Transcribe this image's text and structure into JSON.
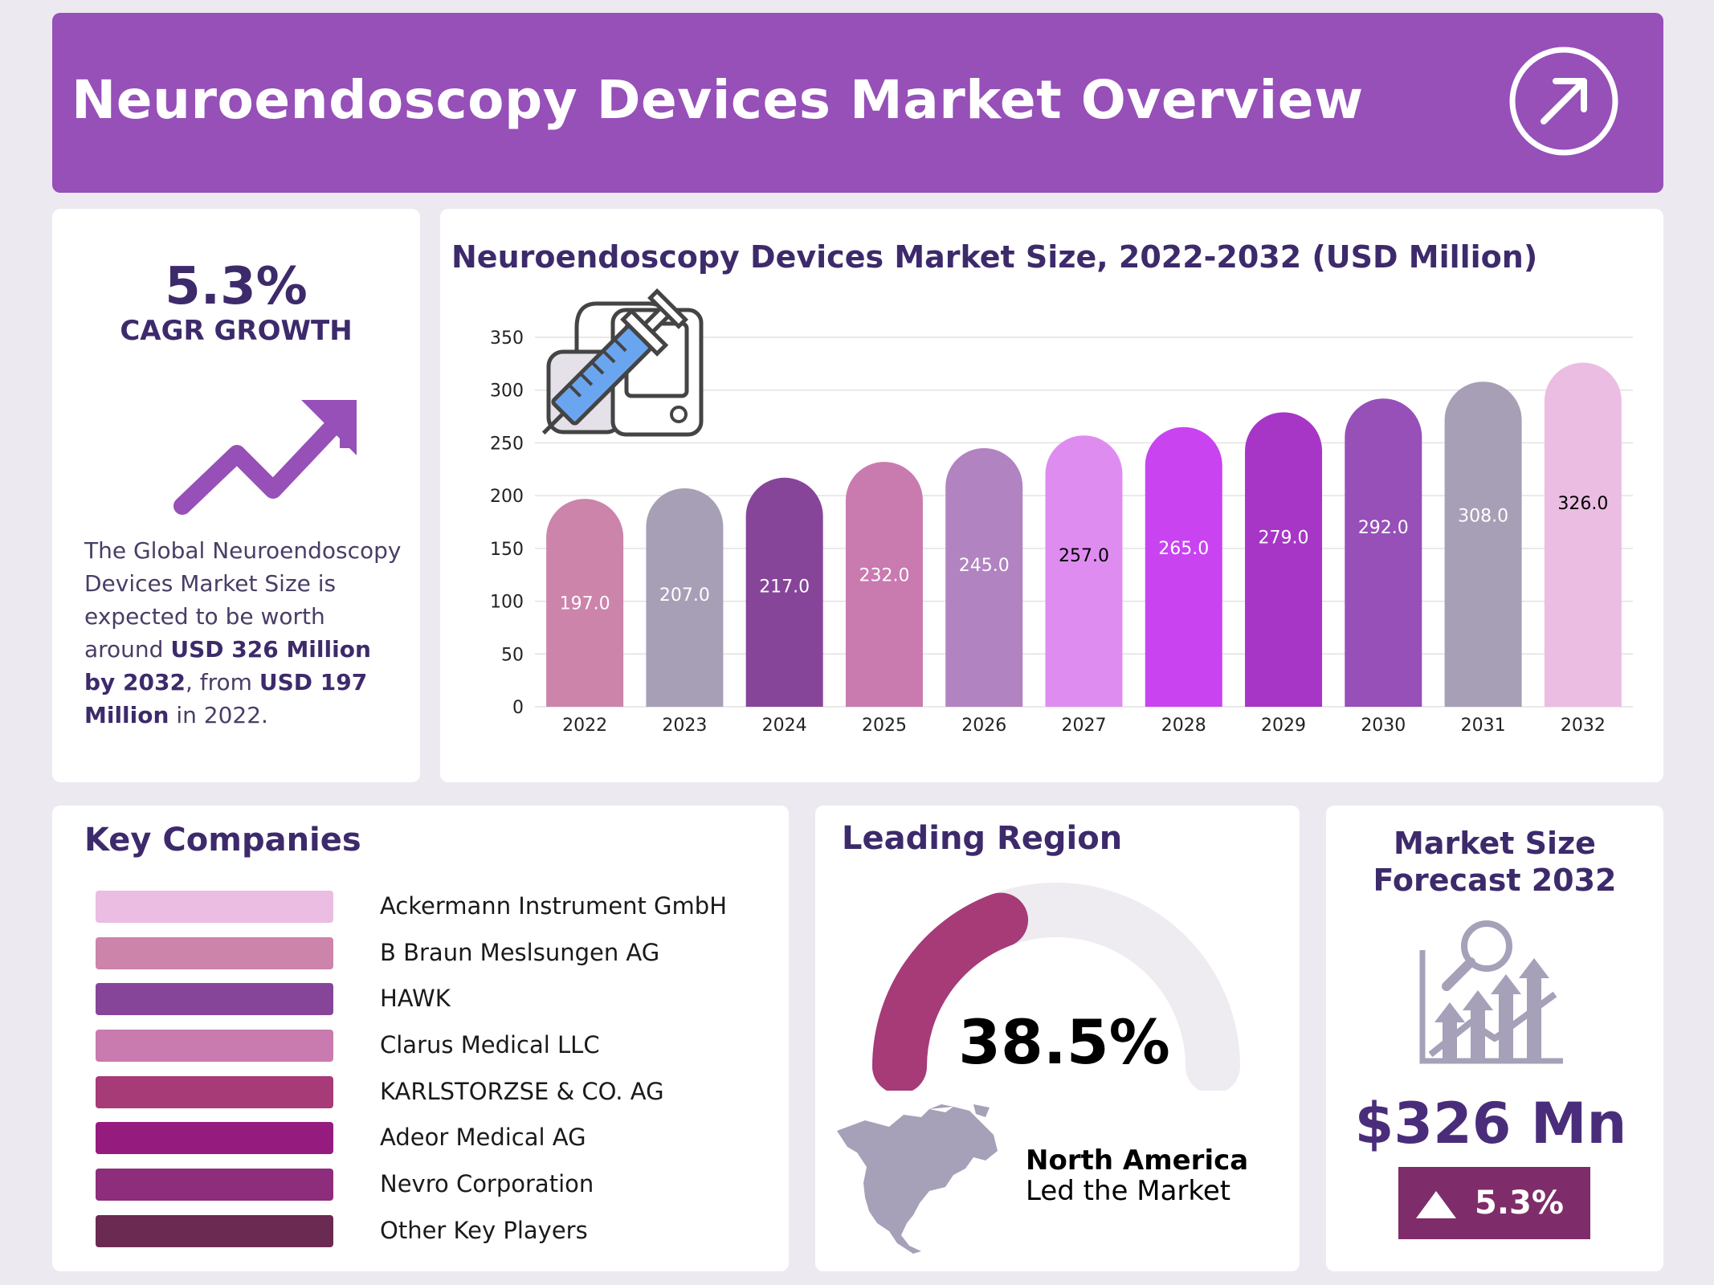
{
  "header": {
    "title": "Neuroendoscopy Devices Market Overview",
    "icon": "arrow-up-right-circle-icon",
    "background": "#9650b8"
  },
  "cagr": {
    "value": "5.3%",
    "label": "CAGR GROWTH",
    "icon": "trend-up-arrow-icon",
    "description": {
      "t1": "The Global Neuroendoscopy Devices Market Size is expected to be worth around ",
      "b1": "USD 326 Million by 2032",
      "t2": ", from ",
      "b2": "USD 197 Million",
      "t3": " in 2022."
    }
  },
  "chart_data": {
    "type": "bar",
    "title": "Neuroendoscopy Devices Market Size, 2022-2032 (USD Million)",
    "xlabel": "",
    "ylabel": "",
    "categories": [
      "2022",
      "2023",
      "2024",
      "2025",
      "2026",
      "2027",
      "2028",
      "2029",
      "2030",
      "2031",
      "2032"
    ],
    "values": [
      197.0,
      207.0,
      217.0,
      232.0,
      245.0,
      257.0,
      265.0,
      279.0,
      292.0,
      308.0,
      326.0
    ],
    "value_labels": [
      "197.0",
      "207.0",
      "217.0",
      "232.0",
      "245.0",
      "257.0",
      "265.0",
      "279.0",
      "292.0",
      "308.0",
      "326.0"
    ],
    "colors": [
      "#cc84ab",
      "#a79fb6",
      "#864599",
      "#c97aaf",
      "#b183c1",
      "#df8cf1",
      "#c943f1",
      "#a736c7",
      "#9650b8",
      "#a79fb6",
      "#ebbde2"
    ],
    "label_colors": [
      "#ffffff",
      "#ffffff",
      "#ffffff",
      "#ffffff",
      "#ffffff",
      "#000000",
      "#ffffff",
      "#ffffff",
      "#ffffff",
      "#ffffff",
      "#000000"
    ],
    "ylim": [
      0,
      350
    ],
    "yticks": [
      "0",
      "50",
      "100",
      "150",
      "200",
      "250",
      "300",
      "350"
    ],
    "grid": true,
    "legend": "none",
    "illustration": "syringe-device-icon"
  },
  "companies": {
    "title": "Key Companies",
    "items": [
      {
        "name": "Ackermann Instrument GmbH",
        "color": "#ebbde2"
      },
      {
        "name": "B Braun Meslsungen AG",
        "color": "#cc84ab"
      },
      {
        "name": "HAWK",
        "color": "#864599"
      },
      {
        "name": "Clarus Medical LLC",
        "color": "#c97aaf"
      },
      {
        "name": "KARLSTORZSE & CO. AG",
        "color": "#a63b78"
      },
      {
        "name": "Adeor Medical AG",
        "color": "#951b7f"
      },
      {
        "name": "Nevro Corporation",
        "color": "#8e2d7b"
      },
      {
        "name": "Other Key Players",
        "color": "#6a2a52"
      }
    ]
  },
  "region": {
    "title": "Leading Region",
    "share": 38.5,
    "share_label": "38.5%",
    "name": "North America",
    "subtitle": "Led the Market",
    "gauge_color": "#a63b78",
    "gauge_track": "#eeecf1",
    "map_icon": "north-america-map-icon"
  },
  "forecast": {
    "title_line1": "Market Size",
    "title_line2": "Forecast 2032",
    "icon": "growth-chart-magnifier-icon",
    "value": "$326 Mn",
    "badge_icon": "triangle-up-icon",
    "badge": "5.3%",
    "badge_color": "#7e2d6a"
  }
}
